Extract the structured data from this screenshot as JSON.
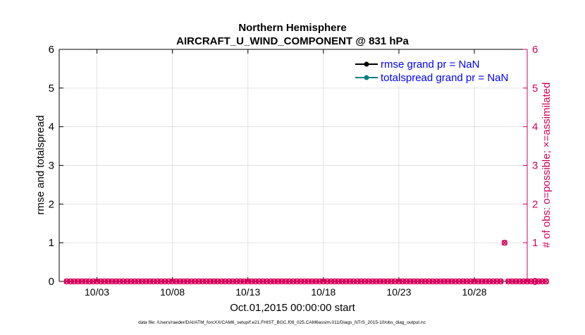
{
  "chart_data": {
    "type": "line",
    "title": "Northern Hemisphere",
    "subtitle": "AIRCRAFT_U_WIND_COMPONENT @ 831 hPa",
    "xlabel": "Oct.01,2015 00:00:00 start",
    "ylabel_left": "rmse and totalspread",
    "ylabel_right": "# of obs: o=possible; ×=assimilated",
    "footer": "data file: /Users/raeder/DAI/ATM_forcXX/CAM6_setup/f.e21.FHIST_BGC.f09_025.CAM6assim.011/Diags_NTrS_2015-10/obs_diag_output.nc",
    "x_range_days": [
      0.5,
      31.5
    ],
    "x_ticks": [
      {
        "day": 3,
        "label": "10/03"
      },
      {
        "day": 8,
        "label": "10/08"
      },
      {
        "day": 13,
        "label": "10/13"
      },
      {
        "day": 18,
        "label": "10/18"
      },
      {
        "day": 23,
        "label": "10/23"
      },
      {
        "day": 28,
        "label": "10/28"
      }
    ],
    "ylim_left": [
      0,
      6
    ],
    "ylim_right": [
      0,
      6
    ],
    "y_ticks": [
      "0",
      "1",
      "2",
      "3",
      "4",
      "5",
      "6"
    ],
    "grid": true,
    "legend_position": "top-right",
    "series": [
      {
        "name": "rmse grand pr = NaN",
        "color": "#000000",
        "axis": "left",
        "values": []
      },
      {
        "name": "totalspread grand pr = NaN",
        "color": "#008080",
        "axis": "left",
        "values": []
      }
    ],
    "obs_counts": {
      "color": "#d6005c",
      "axis": "right",
      "start_day": 1,
      "step_days": 0.25,
      "possible": [
        0,
        0,
        0,
        0,
        0,
        0,
        0,
        0,
        0,
        0,
        0,
        0,
        0,
        0,
        0,
        0,
        0,
        0,
        0,
        0,
        0,
        0,
        0,
        0,
        0,
        0,
        0,
        0,
        0,
        0,
        0,
        0,
        0,
        0,
        0,
        0,
        0,
        0,
        0,
        0,
        0,
        0,
        0,
        0,
        0,
        0,
        0,
        0,
        0,
        0,
        0,
        0,
        0,
        0,
        0,
        0,
        0,
        0,
        0,
        0,
        0,
        0,
        0,
        0,
        0,
        0,
        0,
        0,
        0,
        0,
        0,
        0,
        0,
        0,
        0,
        0,
        0,
        0,
        0,
        0,
        0,
        0,
        0,
        0,
        0,
        0,
        0,
        0,
        0,
        0,
        0,
        0,
        0,
        0,
        0,
        0,
        0,
        0,
        0,
        0,
        0,
        0,
        0,
        0,
        0,
        0,
        0,
        0,
        0,
        0,
        0,
        0,
        0,
        0,
        0,
        0,
        1,
        0,
        0,
        0,
        0,
        0,
        0,
        0,
        0,
        0,
        0,
        0
      ],
      "assimilated": [
        0,
        0,
        0,
        0,
        0,
        0,
        0,
        0,
        0,
        0,
        0,
        0,
        0,
        0,
        0,
        0,
        0,
        0,
        0,
        0,
        0,
        0,
        0,
        0,
        0,
        0,
        0,
        0,
        0,
        0,
        0,
        0,
        0,
        0,
        0,
        0,
        0,
        0,
        0,
        0,
        0,
        0,
        0,
        0,
        0,
        0,
        0,
        0,
        0,
        0,
        0,
        0,
        0,
        0,
        0,
        0,
        0,
        0,
        0,
        0,
        0,
        0,
        0,
        0,
        0,
        0,
        0,
        0,
        0,
        0,
        0,
        0,
        0,
        0,
        0,
        0,
        0,
        0,
        0,
        0,
        0,
        0,
        0,
        0,
        0,
        0,
        0,
        0,
        0,
        0,
        0,
        0,
        0,
        0,
        0,
        0,
        0,
        0,
        0,
        0,
        0,
        0,
        0,
        0,
        0,
        0,
        0,
        0,
        0,
        0,
        0,
        0,
        0,
        0,
        0,
        0,
        1,
        0,
        0,
        0,
        0,
        0,
        0,
        0,
        0,
        0,
        0,
        0
      ]
    }
  }
}
